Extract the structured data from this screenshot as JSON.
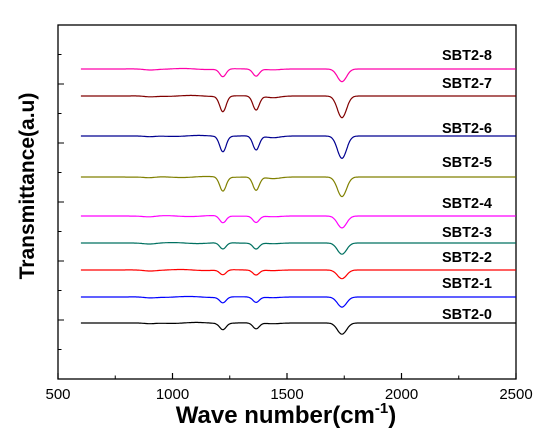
{
  "chart_data": {
    "type": "line",
    "xlabel_main": "Wave number(cm",
    "xlabel_sup": "-1",
    "xlabel_close": ")",
    "ylabel": "Transmittance(a.u)",
    "xlim": [
      500,
      2500
    ],
    "x_ticks": [
      "500",
      "1000",
      "1500",
      "2000",
      "2500"
    ],
    "y_ticks_shown": false,
    "grid": false,
    "x_range_of_data": [
      600,
      2500
    ],
    "series": [
      {
        "name": "SBT2-0",
        "color": "#000000",
        "peaks": [
          {
            "x": 1220,
            "depth": 0.45
          },
          {
            "x": 1365,
            "depth": 0.42
          },
          {
            "x": 1740,
            "depth": 0.8
          }
        ]
      },
      {
        "name": "SBT2-1",
        "color": "#0000ff",
        "peaks": [
          {
            "x": 1220,
            "depth": 0.4
          },
          {
            "x": 1365,
            "depth": 0.38
          },
          {
            "x": 1740,
            "depth": 0.72
          }
        ]
      },
      {
        "name": "SBT2-2",
        "color": "#ff0000",
        "peaks": [
          {
            "x": 1220,
            "depth": 0.35
          },
          {
            "x": 1365,
            "depth": 0.35
          },
          {
            "x": 1740,
            "depth": 0.62
          }
        ]
      },
      {
        "name": "SBT2-3",
        "color": "#007060",
        "peaks": [
          {
            "x": 1220,
            "depth": 0.45
          },
          {
            "x": 1365,
            "depth": 0.42
          },
          {
            "x": 1740,
            "depth": 0.8
          }
        ]
      },
      {
        "name": "SBT2-4",
        "color": "#ff00ff",
        "peaks": [
          {
            "x": 1220,
            "depth": 0.5
          },
          {
            "x": 1365,
            "depth": 0.46
          },
          {
            "x": 1740,
            "depth": 0.85
          }
        ]
      },
      {
        "name": "SBT2-5",
        "color": "#808000",
        "peaks": [
          {
            "x": 1220,
            "depth": 1.0
          },
          {
            "x": 1365,
            "depth": 0.95
          },
          {
            "x": 1740,
            "depth": 1.4
          }
        ]
      },
      {
        "name": "SBT2-6",
        "color": "#000090",
        "peaks": [
          {
            "x": 1220,
            "depth": 1.1
          },
          {
            "x": 1365,
            "depth": 1.0
          },
          {
            "x": 1740,
            "depth": 1.6
          }
        ]
      },
      {
        "name": "SBT2-7",
        "color": "#800000",
        "peaks": [
          {
            "x": 1220,
            "depth": 1.1
          },
          {
            "x": 1365,
            "depth": 1.0
          },
          {
            "x": 1740,
            "depth": 1.55
          }
        ]
      },
      {
        "name": "SBT2-8",
        "color": "#ff00aa",
        "peaks": [
          {
            "x": 1220,
            "depth": 0.55
          },
          {
            "x": 1365,
            "depth": 0.5
          },
          {
            "x": 1740,
            "depth": 0.9
          }
        ]
      }
    ]
  }
}
